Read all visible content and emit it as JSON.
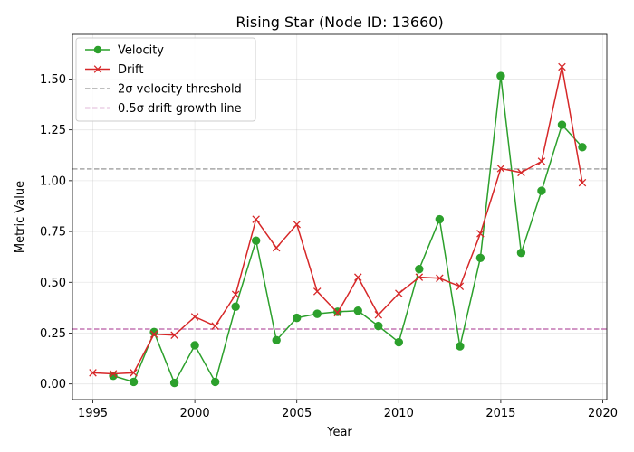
{
  "chart_data": {
    "type": "line",
    "title": "Rising Star (Node ID: 13660)",
    "xlabel": "Year",
    "ylabel": "Metric Value",
    "xlim": [
      1994,
      2020.2
    ],
    "ylim": [
      -0.077,
      1.72
    ],
    "xticks": [
      1995,
      2000,
      2005,
      2010,
      2015,
      2020
    ],
    "yticks": [
      "0.00",
      "0.25",
      "0.50",
      "0.75",
      "1.00",
      "1.25",
      "1.50"
    ],
    "ytick_values": [
      0,
      0.25,
      0.5,
      0.75,
      1.0,
      1.25,
      1.5
    ],
    "grid": true,
    "legend_position": "top-left",
    "series": [
      {
        "name": "Velocity",
        "color": "#2ca02c",
        "marker": "circle",
        "x": [
          1996,
          1997,
          1998,
          1999,
          2000,
          2001,
          2002,
          2003,
          2004,
          2005,
          2006,
          2007,
          2008,
          2009,
          2010,
          2011,
          2012,
          2013,
          2014,
          2015,
          2016,
          2017,
          2018,
          2019
        ],
        "y": [
          0.04,
          0.01,
          0.255,
          0.005,
          0.19,
          0.01,
          0.38,
          0.705,
          0.215,
          0.325,
          0.345,
          0.355,
          0.36,
          0.285,
          0.205,
          0.565,
          0.81,
          0.185,
          0.62,
          1.515,
          0.645,
          0.95,
          1.275,
          1.165
        ]
      },
      {
        "name": "Drift",
        "color": "#d62728",
        "marker": "x",
        "x": [
          1995,
          1996,
          1997,
          1998,
          1999,
          2000,
          2001,
          2002,
          2003,
          2004,
          2005,
          2006,
          2007,
          2008,
          2009,
          2010,
          2011,
          2012,
          2013,
          2014,
          2015,
          2016,
          2017,
          2018,
          2019
        ],
        "y": [
          0.055,
          0.05,
          0.055,
          0.245,
          0.24,
          0.33,
          0.285,
          0.44,
          0.81,
          0.67,
          0.785,
          0.455,
          0.35,
          0.525,
          0.34,
          0.445,
          0.525,
          0.52,
          0.48,
          0.74,
          1.06,
          1.04,
          1.095,
          1.56,
          0.99
        ]
      }
    ],
    "reference_lines": [
      {
        "name": "2σ velocity threshold",
        "y": 1.058,
        "color": "#a8a8a8",
        "style": "dashed"
      },
      {
        "name": "0.5σ drift growth line",
        "y": 0.27,
        "color": "#c475b3",
        "style": "dashed"
      }
    ]
  }
}
